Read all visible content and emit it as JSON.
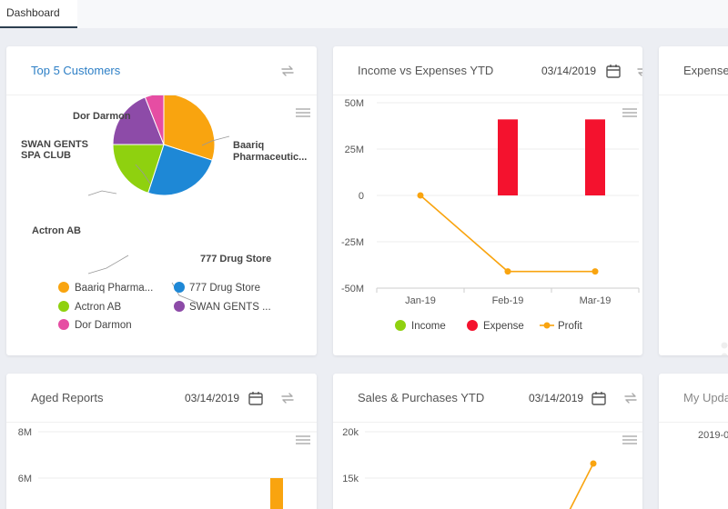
{
  "tabs": [
    {
      "label": "Dashboard"
    }
  ],
  "cards": {
    "top_customers": {
      "title": "Top 5 Customers",
      "pie_labels": [
        "Baariq",
        "Pharmaceutic...",
        "777 Drug Store",
        "Actron AB",
        "SWAN GENTS",
        "SPA CLUB",
        "Dor Darmon"
      ],
      "legend": [
        "Baariq Pharma...",
        "777 Drug Store",
        "Actron AB",
        "SWAN GENTS ...",
        "Dor Darmon"
      ]
    },
    "income_expenses": {
      "title": "Income vs Expenses YTD",
      "date": "03/14/2019",
      "legend": [
        "Income",
        "Expense",
        "Profit"
      ]
    },
    "expense": {
      "title": "Expense"
    },
    "aged_reports": {
      "title": "Aged Reports",
      "date": "03/14/2019",
      "yticks": [
        "8M",
        "6M"
      ]
    },
    "sales_purchases": {
      "title": "Sales & Purchases YTD",
      "date": "03/14/2019",
      "yticks": [
        "20k",
        "15k"
      ]
    },
    "my_updates": {
      "title": "My Upda",
      "date_partial": "2019-0"
    }
  },
  "chart_data": [
    {
      "type": "pie",
      "labels": [
        "Baariq Pharmaceutic...",
        "777 Drug Store",
        "Actron AB",
        "SWAN GENTS SPA CLUB",
        "Dor Darmon"
      ],
      "values": [
        30,
        25,
        20,
        19,
        6
      ],
      "colors": [
        "#f9a40f",
        "#1e88d6",
        "#8fd10f",
        "#8d4ba8",
        "#e64da3"
      ],
      "legend_position": "bottom"
    },
    {
      "type": "bar",
      "categories": [
        "Jan-19",
        "Feb-19",
        "Mar-19"
      ],
      "yticks": [
        "50M",
        "25M",
        "0",
        "-25M",
        "-50M"
      ],
      "ylim": [
        -50,
        50
      ],
      "series": [
        {
          "name": "Income",
          "values": [
            0,
            0,
            0
          ],
          "color": "#8fd10f"
        },
        {
          "name": "Expense",
          "values": [
            0,
            41,
            41
          ],
          "color": "#f4122e"
        },
        {
          "name": "Profit",
          "values": [
            0,
            -41,
            -41
          ],
          "color": "#f9a40f"
        }
      ],
      "legend_position": "bottom"
    },
    {
      "type": "bar",
      "yticks": [
        "8M",
        "6M"
      ],
      "series": [
        {
          "values": [
            6
          ],
          "color": "#f9a40f"
        }
      ]
    },
    {
      "type": "line",
      "yticks": [
        "20k",
        "15k"
      ],
      "series": [
        {
          "values": [
            16.5
          ],
          "color": "#f9a40f"
        }
      ]
    }
  ]
}
